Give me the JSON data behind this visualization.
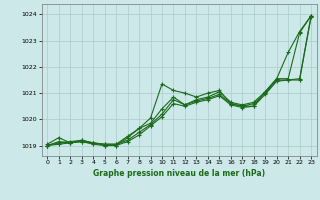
{
  "xlabel": "Graphe pression niveau de la mer (hPa)",
  "xlim": [
    -0.5,
    23.5
  ],
  "ylim": [
    1018.6,
    1024.4
  ],
  "yticks": [
    1019,
    1020,
    1021,
    1022,
    1023,
    1024
  ],
  "xticks": [
    0,
    1,
    2,
    3,
    4,
    5,
    6,
    7,
    8,
    9,
    10,
    11,
    12,
    13,
    14,
    15,
    16,
    17,
    18,
    19,
    20,
    21,
    22,
    23
  ],
  "bg_color": "#cce8e8",
  "grid_color": "#aacccc",
  "line_color": "#1a6b1a",
  "lines": [
    [
      1019.05,
      1019.3,
      1019.1,
      1019.2,
      1019.1,
      1019.05,
      1019.05,
      1019.35,
      1019.65,
      1020.05,
      1021.35,
      1021.1,
      1021.0,
      1020.85,
      1021.0,
      1021.1,
      1020.6,
      1020.5,
      1020.5,
      1021.05,
      1021.55,
      1022.55,
      1023.35,
      1023.95
    ],
    [
      1019.0,
      1019.15,
      1019.1,
      1019.15,
      1019.1,
      1019.0,
      1019.0,
      1019.3,
      1019.65,
      1019.85,
      1020.4,
      1020.85,
      1020.55,
      1020.75,
      1020.85,
      1021.05,
      1020.65,
      1020.55,
      1020.65,
      1021.05,
      1021.55,
      1021.55,
      1023.3,
      1023.95
    ],
    [
      1019.0,
      1019.1,
      1019.15,
      1019.2,
      1019.1,
      1019.05,
      1019.05,
      1019.2,
      1019.5,
      1019.8,
      1020.2,
      1020.75,
      1020.55,
      1020.7,
      1020.8,
      1020.95,
      1020.6,
      1020.5,
      1020.6,
      1021.0,
      1021.5,
      1021.5,
      1021.55,
      1023.95
    ],
    [
      1019.0,
      1019.05,
      1019.1,
      1019.15,
      1019.05,
      1019.0,
      1019.0,
      1019.15,
      1019.4,
      1019.75,
      1020.1,
      1020.6,
      1020.5,
      1020.65,
      1020.75,
      1020.9,
      1020.55,
      1020.45,
      1020.5,
      1020.95,
      1021.45,
      1021.5,
      1021.5,
      1023.9
    ]
  ],
  "figsize": [
    3.2,
    2.0
  ],
  "dpi": 100
}
